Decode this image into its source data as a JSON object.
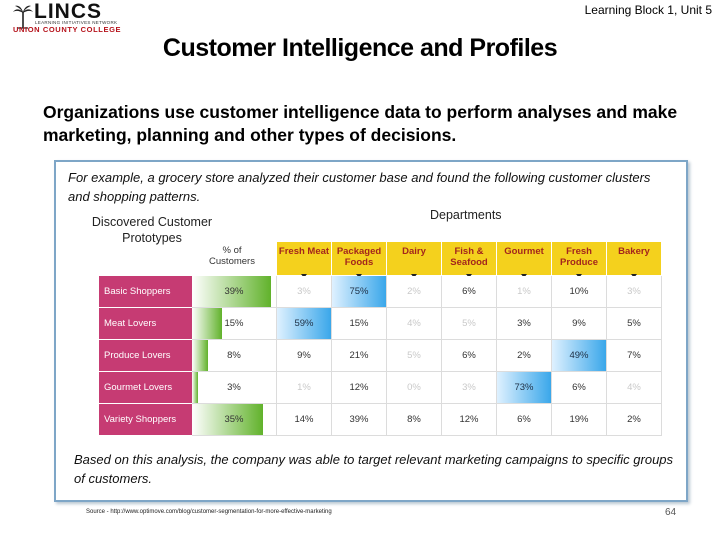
{
  "header": {
    "logo_brand": "LINCS",
    "logo_tagline": "LEARNING INITIATIVES NETWORK",
    "logo_college": "UNION COUNTY COLLEGE",
    "block_label": "Learning Block 1, Unit 5"
  },
  "slide": {
    "title": "Customer Intelligence and Profiles",
    "lead": "Organizations use customer intelligence data to perform analyses and make marketing, planning and other types of decisions.",
    "example": "For example,  a grocery store analyzed their customer base and found the following customer clusters and shopping patterns.",
    "conclusion": "Based on this analysis, the company was able to target relevant marketing campaigns to specific groups of customers.",
    "source": "Source - http://www.optimove.com/blog/customer-segmentation-for-more-effective-marketing",
    "page_number": "64"
  },
  "figure": {
    "prototypes_title": "Discovered Customer Prototypes",
    "departments_title": "Departments",
    "pct_header": "% of Customers",
    "departments": [
      "Fresh Meat",
      "Packaged Foods",
      "Dairy",
      "Fish & Seafood",
      "Gourmet",
      "Fresh Produce",
      "Bakery"
    ],
    "rows": [
      {
        "label": "Basic Shoppers",
        "pct": "39%",
        "pct_value": 39,
        "values": [
          "3%",
          "75%",
          "2%",
          "6%",
          "1%",
          "10%",
          "3%"
        ],
        "faded": [
          true,
          false,
          true,
          false,
          true,
          false,
          true
        ],
        "hot": [
          false,
          true,
          false,
          false,
          false,
          false,
          false
        ]
      },
      {
        "label": "Meat Lovers",
        "pct": "15%",
        "pct_value": 15,
        "values": [
          "59%",
          "15%",
          "4%",
          "5%",
          "3%",
          "9%",
          "5%"
        ],
        "faded": [
          false,
          false,
          true,
          true,
          false,
          false,
          false
        ],
        "hot": [
          true,
          false,
          false,
          false,
          false,
          false,
          false
        ]
      },
      {
        "label": "Produce Lovers",
        "pct": "8%",
        "pct_value": 8,
        "values": [
          "9%",
          "21%",
          "5%",
          "6%",
          "2%",
          "49%",
          "7%"
        ],
        "faded": [
          false,
          false,
          true,
          false,
          false,
          false,
          false
        ],
        "hot": [
          false,
          false,
          false,
          false,
          false,
          true,
          false
        ]
      },
      {
        "label": "Gourmet Lovers",
        "pct": "3%",
        "pct_value": 3,
        "values": [
          "1%",
          "12%",
          "0%",
          "3%",
          "73%",
          "6%",
          "4%"
        ],
        "faded": [
          true,
          false,
          true,
          true,
          false,
          false,
          true
        ],
        "hot": [
          false,
          false,
          false,
          false,
          true,
          false,
          false
        ]
      },
      {
        "label": "Variety Shoppers",
        "pct": "35%",
        "pct_value": 35,
        "values": [
          "14%",
          "39%",
          "8%",
          "12%",
          "6%",
          "19%",
          "2%"
        ],
        "faded": [
          false,
          false,
          false,
          false,
          false,
          false,
          false
        ],
        "hot": [
          false,
          false,
          false,
          false,
          false,
          false,
          false
        ]
      }
    ]
  },
  "colors": {
    "row_label": "#c63b73",
    "dept_header": "#f4d11d",
    "dept_text": "#a3261d",
    "highlight": "#3aa7ea",
    "bar": "#61b22b",
    "logo_red": "#b5121b"
  }
}
